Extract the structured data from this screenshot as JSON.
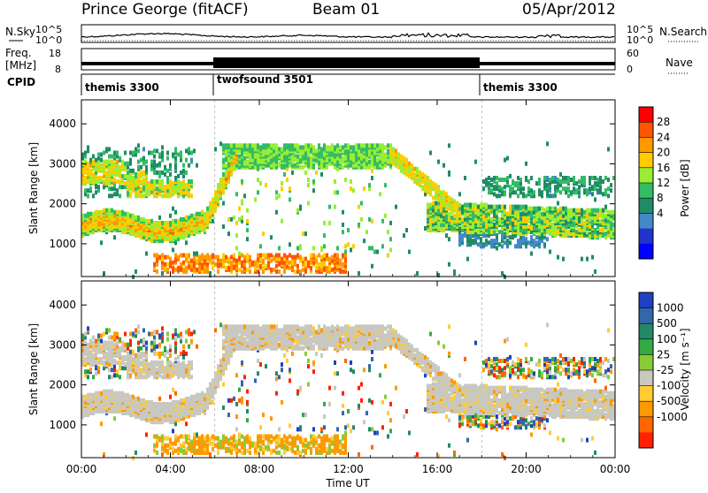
{
  "header": {
    "radar_title": "Prince George (fitACF)",
    "beam": "Beam 01",
    "date": "05/Apr/2012"
  },
  "strip_labels": {
    "nsky": "N.Sky",
    "nsky_ticks": [
      "10^5",
      "10^0"
    ],
    "nsearch": "N.Search",
    "freq": "Freq.",
    "freq_unit": "[MHz]",
    "freq_ticks": [
      "18",
      "8"
    ],
    "nave": "Nave",
    "nave_ticks": [
      "60",
      "0"
    ],
    "cpid": "CPID"
  },
  "cpid_segments": [
    {
      "name": "themis 3300",
      "start_hour": 0,
      "end_hour": 6
    },
    {
      "name": "twofsound 3501",
      "start_hour": 6,
      "end_hour": 18
    },
    {
      "name": "themis 3300",
      "start_hour": 18,
      "end_hour": 24
    }
  ],
  "panels": [
    {
      "id": "power",
      "ylabel": "Slant Range [km]",
      "colorbar_label": "Power [dB]"
    },
    {
      "id": "velocity",
      "ylabel": "Slant Range [km]",
      "colorbar_label": "Velocity [m s⁻¹]"
    }
  ],
  "power_colorbar": {
    "ticks": [
      "28",
      "24",
      "20",
      "16",
      "12",
      "8",
      "4"
    ],
    "colors": [
      "#ff0000",
      "#ff5500",
      "#ff9900",
      "#ffcc00",
      "#99ee33",
      "#33bb66",
      "#1f8c66",
      "#4488cc",
      "#2233cc",
      "#0000ff"
    ]
  },
  "velocity_colorbar": {
    "ticks": [
      "1000",
      "500",
      "100",
      "25",
      "-25",
      "-100",
      "-500",
      "-1000"
    ],
    "colors": [
      "#2040c0",
      "#3366aa",
      "#228866",
      "#33aa44",
      "#88cc33",
      "#c8c8c0",
      "#ffcc33",
      "#ff9900",
      "#ff6600",
      "#ff2200"
    ]
  },
  "chart_data": {
    "type": "heatmap",
    "title": "Prince George (fitACF)",
    "xlabel": "Time UT",
    "x_ticks": [
      "00:00",
      "04:00",
      "08:00",
      "12:00",
      "16:00",
      "20:00",
      "00:00"
    ],
    "x_range_hours": [
      0,
      24
    ],
    "ylabel": "Slant Range [km]",
    "y_ticks": [
      1000,
      2000,
      3000,
      4000
    ],
    "y_range_km": [
      180,
      4600
    ],
    "power_scale_db": [
      0,
      30
    ],
    "velocity_scale_ms": [
      -1000,
      1000
    ],
    "scatter_regions": [
      {
        "description": "main ionospheric band",
        "hours": [
          0,
          6
        ],
        "range_km": [
          1300,
          1800
        ],
        "power_db": 24,
        "velocity": "ground-scatter"
      },
      {
        "description": "upper scatter",
        "hours": [
          0,
          5
        ],
        "range_km": [
          2300,
          3300
        ],
        "power_db": 16,
        "velocity": "mixed"
      },
      {
        "description": "near range",
        "hours": [
          3,
          12
        ],
        "range_km": [
          300,
          700
        ],
        "power_db": 24,
        "velocity": -300
      },
      {
        "description": "high range plateau",
        "hours": [
          6.5,
          14
        ],
        "range_km": [
          3000,
          3500
        ],
        "power_db": 14,
        "velocity": 50
      },
      {
        "description": "evening band",
        "hours": [
          14,
          24
        ],
        "range_km": [
          1300,
          2300
        ],
        "power_db": 14,
        "velocity": "ground-scatter"
      }
    ]
  }
}
